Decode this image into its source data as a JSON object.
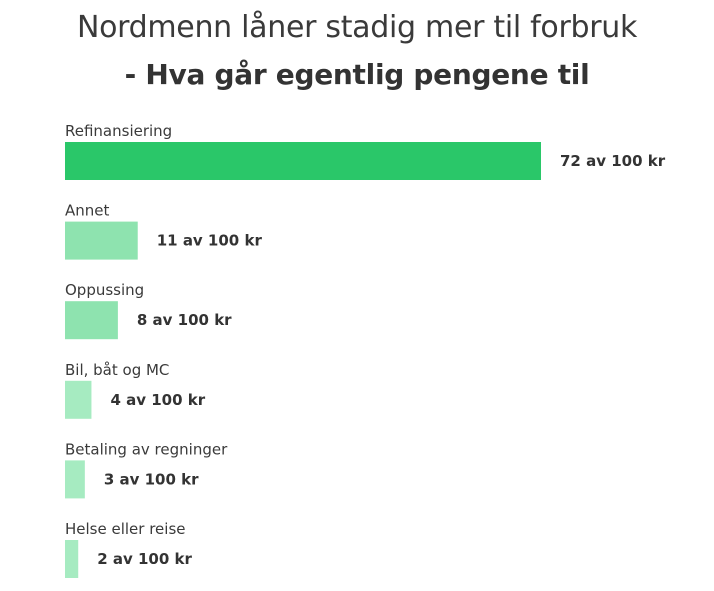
{
  "chart_data": {
    "type": "bar",
    "orientation": "horizontal",
    "title": "Nordmenn låner stadig mer til forbruk",
    "subtitle": "- Hva går egentlig pengene til",
    "categories": [
      "Refinansiering",
      "Annet",
      "Oppussing",
      "Bil, båt og MC",
      "Betaling av regninger",
      "Helse eller reise"
    ],
    "values": [
      72,
      11,
      8,
      4,
      3,
      2
    ],
    "value_labels": [
      "72 av 100 kr",
      "11 av 100 kr",
      "8 av 100 kr",
      "4 av 100 kr",
      "3 av 100 kr",
      "2 av 100 kr"
    ],
    "xlim": [
      0,
      72
    ],
    "grid": false,
    "colors": {
      "primary": "#2ac769",
      "secondary": "#8ee3af",
      "tertiary": "#a6ebc1"
    },
    "bar_colors": [
      "#2ac769",
      "#8ee3af",
      "#8ee3af",
      "#a6ebc1",
      "#a6ebc1",
      "#a6ebc1"
    ]
  }
}
